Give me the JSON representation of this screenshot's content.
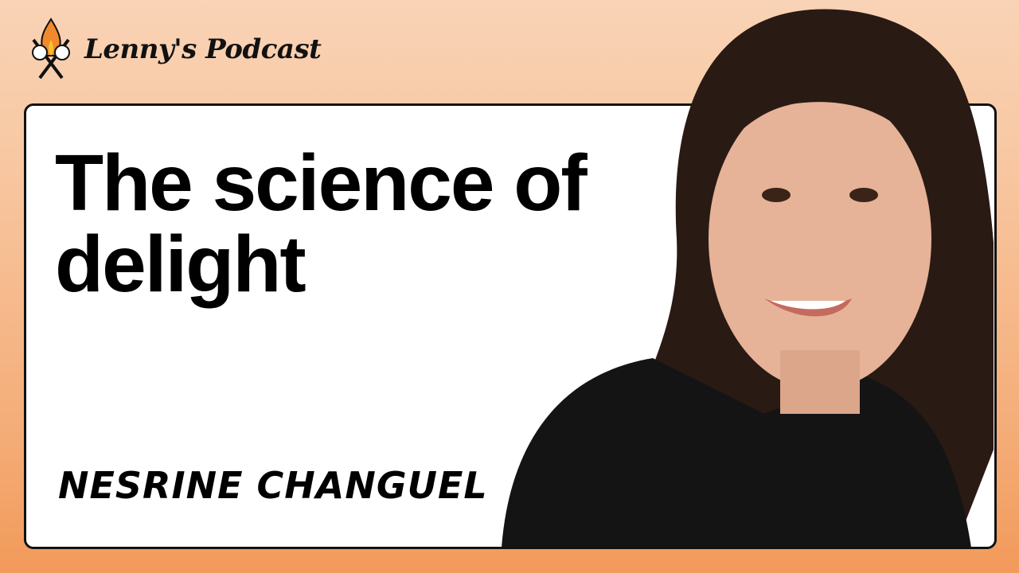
{
  "brand": {
    "name": "Lenny's Podcast",
    "logo_icon": "campfire-marshmallow-icon"
  },
  "episode": {
    "title": "The science of delight",
    "guest": "NESRINE CHANGUEL"
  },
  "colors": {
    "background_top": "#f9d3b6",
    "background_bottom": "#f29a5a",
    "card": "#ffffff",
    "text": "#000000"
  }
}
